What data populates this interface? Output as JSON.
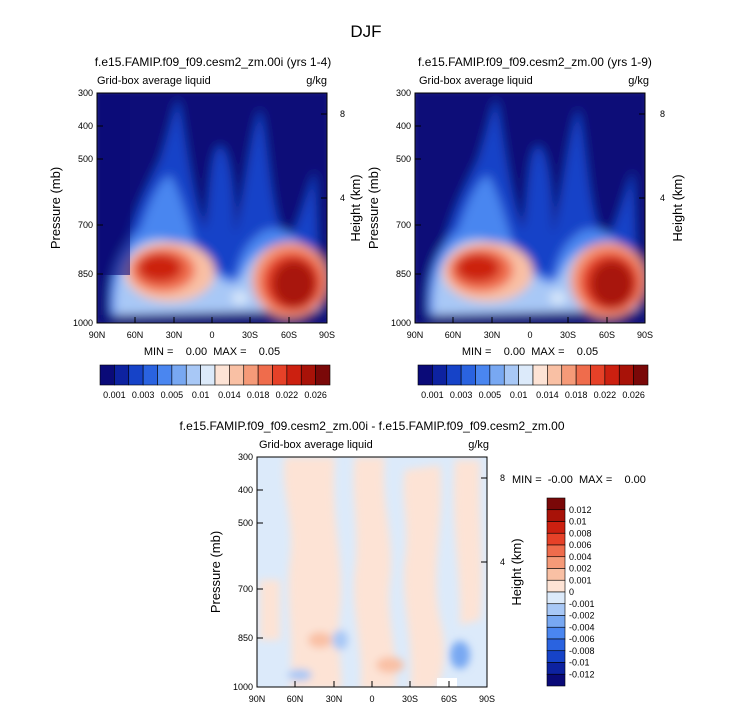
{
  "page_title": "DJF",
  "colors": {
    "colorbar_top": [
      "#0a0a78",
      "#0d22a0",
      "#1643c8",
      "#2a63e0",
      "#4a86f0",
      "#78a8f2",
      "#a8c8f6",
      "#dceafa",
      "#fde3d5",
      "#f9c0a4",
      "#f59a78",
      "#ef6c4c",
      "#e64128",
      "#cc2010",
      "#a81208",
      "#7a0808"
    ],
    "colorbar_diff": [
      "#0a0a78",
      "#0d22a0",
      "#1643c8",
      "#2a63e0",
      "#4a86f0",
      "#78a8f2",
      "#a8c8f6",
      "#dceafa",
      "#fde3d5",
      "#f9c0a4",
      "#f59a78",
      "#ef6c4c",
      "#e64128",
      "#cc2010",
      "#a81208",
      "#7a0808"
    ]
  },
  "panels": [
    {
      "title": "f.e15.FAMIP.f09_f09.cesm2_zm.00i (yrs 1-4)",
      "left_string": "Grid-box average liquid",
      "right_string": "g/kg",
      "ylabel": "Pressure (mb)",
      "y2label": "Height (km)",
      "minmax": "MIN =    0.00  MAX =    0.05"
    },
    {
      "title": "f.e15.FAMIP.f09_f09.cesm2_zm.00 (yrs 1-9)",
      "left_string": "Grid-box average liquid",
      "right_string": "g/kg",
      "ylabel": "Pressure (mb)",
      "y2label": "Height (km)",
      "minmax": "MIN =    0.00  MAX =    0.05"
    },
    {
      "title": "f.e15.FAMIP.f09_f09.cesm2_zm.00i - f.e15.FAMIP.f09_f09.cesm2_zm.00",
      "left_string": "Grid-box average liquid",
      "right_string": "g/kg",
      "ylabel": "Pressure (mb)",
      "y2label": "Height (km)",
      "minmax": "MIN =  -0.00  MAX =    0.00"
    }
  ],
  "colorbar_top_labels": [
    "0.001",
    "0.003",
    "0.005",
    "0.01",
    "0.014",
    "0.018",
    "0.022",
    "0.026"
  ],
  "colorbar_diff_labels": [
    "0.012",
    "0.01",
    "0.008",
    "0.006",
    "0.004",
    "0.002",
    "0.001",
    "0",
    "-0.001",
    "-0.002",
    "-0.004",
    "-0.006",
    "-0.008",
    "-0.01",
    "-0.012"
  ],
  "chart_data": [
    {
      "type": "heatmap",
      "title": "f.e15.FAMIP.f09_f09.cesm2_zm.00i (yrs 1-4)",
      "xlabel": "",
      "ylabel": "Pressure (mb)",
      "y2label": "Height (km)",
      "x_ticks": [
        "90N",
        "60N",
        "30N",
        "0",
        "30S",
        "60S",
        "90S"
      ],
      "y_ticks": [
        "300",
        "400",
        "500",
        "700",
        "850",
        "1000"
      ],
      "y2_ticks": [
        "8",
        "4"
      ],
      "y_scale": "log",
      "ylim": [
        1000,
        300
      ],
      "xlim": [
        90,
        -90
      ],
      "contour_levels": [
        0.001,
        0.003,
        0.005,
        0.01,
        0.014,
        0.018,
        0.022,
        0.026
      ],
      "features": [
        {
          "lat": 55,
          "p": 850,
          "value": 0.03
        },
        {
          "lat": -55,
          "p": 880,
          "value": 0.05
        },
        {
          "lat": 0,
          "p": 850,
          "value": 0.006
        },
        {
          "lat": -15,
          "p": 950,
          "value": 0.014
        }
      ],
      "min": 0.0,
      "max": 0.05
    },
    {
      "type": "heatmap",
      "title": "f.e15.FAMIP.f09_f09.cesm2_zm.00 (yrs 1-9)",
      "xlabel": "",
      "ylabel": "Pressure (mb)",
      "y2label": "Height (km)",
      "x_ticks": [
        "90N",
        "60N",
        "30N",
        "0",
        "30S",
        "60S",
        "90S"
      ],
      "y_ticks": [
        "300",
        "400",
        "500",
        "700",
        "850",
        "1000"
      ],
      "y2_ticks": [
        "8",
        "4"
      ],
      "y_scale": "log",
      "ylim": [
        1000,
        300
      ],
      "xlim": [
        90,
        -90
      ],
      "contour_levels": [
        0.001,
        0.003,
        0.005,
        0.01,
        0.014,
        0.018,
        0.022,
        0.026
      ],
      "features": [
        {
          "lat": 55,
          "p": 850,
          "value": 0.03
        },
        {
          "lat": -55,
          "p": 880,
          "value": 0.05
        },
        {
          "lat": 0,
          "p": 850,
          "value": 0.006
        },
        {
          "lat": -15,
          "p": 950,
          "value": 0.014
        }
      ],
      "min": 0.0,
      "max": 0.05
    },
    {
      "type": "heatmap",
      "title": "f.e15.FAMIP.f09_f09.cesm2_zm.00i - f.e15.FAMIP.f09_f09.cesm2_zm.00",
      "xlabel": "",
      "ylabel": "Pressure (mb)",
      "y2label": "Height (km)",
      "x_ticks": [
        "90N",
        "60N",
        "30N",
        "0",
        "30S",
        "60S",
        "90S"
      ],
      "y_ticks": [
        "300",
        "400",
        "500",
        "700",
        "850",
        "1000"
      ],
      "y2_ticks": [
        "8",
        "4"
      ],
      "y_scale": "log",
      "ylim": [
        1000,
        300
      ],
      "xlim": [
        90,
        -90
      ],
      "contour_levels": [
        -0.012,
        -0.01,
        -0.008,
        -0.006,
        -0.004,
        -0.002,
        -0.001,
        0,
        0.001,
        0.002,
        0.004,
        0.006,
        0.008,
        0.01,
        0.012
      ],
      "min": -0.0,
      "max": 0.0
    }
  ]
}
